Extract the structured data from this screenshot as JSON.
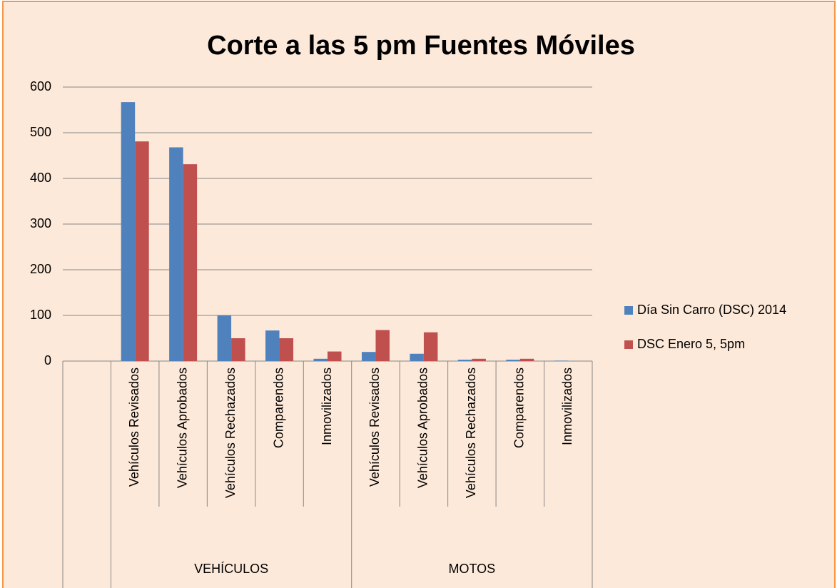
{
  "chart_data": {
    "type": "bar",
    "title": "Corte a las 5 pm Fuentes Móviles",
    "groups": [
      {
        "label": null,
        "categories": [
          null
        ]
      },
      {
        "label": "VEHÍCULOS",
        "categories": [
          "Vehículos Revisados",
          "Vehículos Aprobados",
          "Vehículos Rechazados",
          "Comparendos",
          "Inmovilizados"
        ]
      },
      {
        "label": "MOTOS",
        "categories": [
          "Vehículos Revisados",
          "Vehículos Aprobados",
          "Vehículos Rechazados",
          "Comparendos",
          "Inmovilizados"
        ]
      }
    ],
    "series": [
      {
        "name": "Día Sin Carro (DSC) 2014",
        "color": "#4f81bd",
        "values": [
          null,
          567,
          468,
          100,
          67,
          5,
          20,
          16,
          3,
          3,
          1
        ]
      },
      {
        "name": "DSC Enero 5, 5pm",
        "color": "#c0504d",
        "values": [
          null,
          481,
          431,
          50,
          50,
          21,
          68,
          63,
          5,
          5,
          0
        ]
      }
    ],
    "ylim": [
      0,
      600
    ],
    "yticks": [
      0,
      100,
      200,
      300,
      400,
      500,
      600
    ],
    "grid": true,
    "legend": "right"
  }
}
